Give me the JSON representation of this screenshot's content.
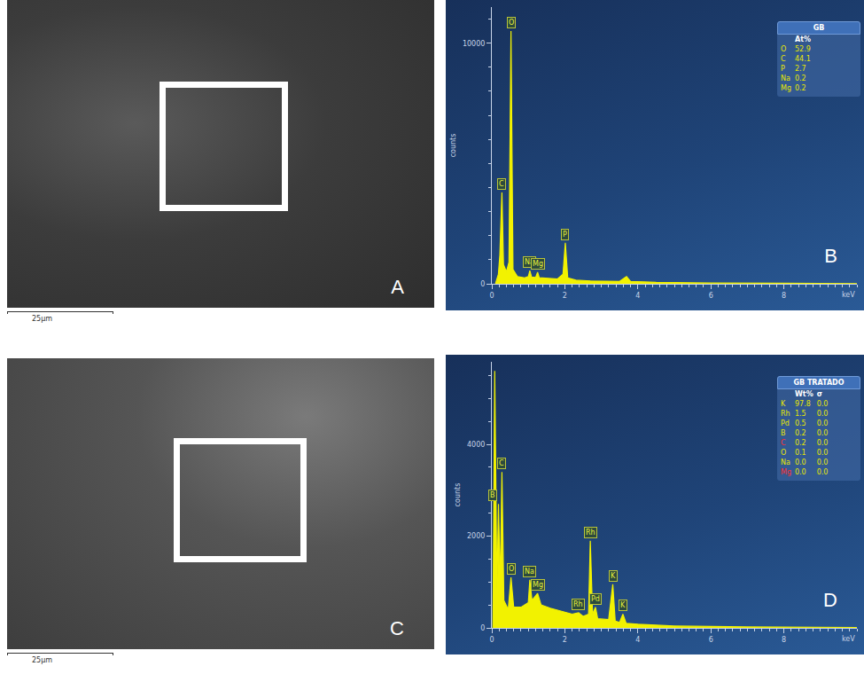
{
  "images": [
    {
      "label": "A",
      "scale_bar": "25µm"
    },
    {
      "label": "C",
      "scale_bar": "25µm"
    }
  ],
  "chart_data": [
    {
      "type": "line",
      "label": "B",
      "y_label": "counts",
      "x_label": "keV",
      "xlim": [
        0,
        10
      ],
      "xticks": [
        0,
        2,
        4,
        6,
        8
      ],
      "ylim": [
        0,
        11500
      ],
      "yticks": [
        0,
        10000
      ],
      "color": "#f2f200",
      "x": [
        0.1,
        0.18,
        0.22,
        0.277,
        0.32,
        0.4,
        0.47,
        0.525,
        0.58,
        0.7,
        0.9,
        1.0,
        1.041,
        1.09,
        1.2,
        1.254,
        1.3,
        1.5,
        1.8,
        1.95,
        2.013,
        2.08,
        2.3,
        2.7,
        3.5,
        3.69,
        3.8,
        4.5,
        6,
        8,
        10
      ],
      "values": [
        0,
        400,
        1200,
        3800,
        800,
        500,
        900,
        10500,
        600,
        300,
        250,
        300,
        550,
        280,
        260,
        480,
        250,
        220,
        200,
        400,
        1700,
        250,
        150,
        120,
        100,
        300,
        100,
        60,
        30,
        20,
        10
      ],
      "peak_labels": [
        {
          "text": "C",
          "x": 0.277
        },
        {
          "text": "O",
          "x": 0.525
        },
        {
          "text": "Na",
          "x": 1.041
        },
        {
          "text": "Mg",
          "x": 1.254
        },
        {
          "text": "P",
          "x": 2.013
        }
      ],
      "table": {
        "title": "GB",
        "columns": [
          "",
          "At%"
        ],
        "rows": [
          {
            "cells": [
              "O",
              "52.9"
            ]
          },
          {
            "cells": [
              "C",
              "44.1"
            ]
          },
          {
            "cells": [
              "P",
              "2.7"
            ]
          },
          {
            "cells": [
              "Na",
              "0.2"
            ]
          },
          {
            "cells": [
              "Mg",
              "0.2"
            ]
          }
        ]
      }
    },
    {
      "type": "line",
      "label": "D",
      "y_label": "counts",
      "x_label": "keV",
      "xlim": [
        0,
        10
      ],
      "xticks": [
        0,
        2,
        4,
        6,
        8
      ],
      "ylim": [
        0,
        5800
      ],
      "yticks": [
        0,
        2000,
        4000
      ],
      "color": "#f2f200",
      "x": [
        0.03,
        0.08,
        0.14,
        0.183,
        0.23,
        0.277,
        0.33,
        0.45,
        0.525,
        0.6,
        0.8,
        1.0,
        1.041,
        1.1,
        1.254,
        1.35,
        1.6,
        2.0,
        2.2,
        2.377,
        2.5,
        2.65,
        2.697,
        2.76,
        2.839,
        2.9,
        3.2,
        3.313,
        3.38,
        3.5,
        3.59,
        3.68,
        4,
        5,
        7,
        10
      ],
      "values": [
        0,
        5600,
        800,
        2700,
        900,
        3400,
        600,
        400,
        1100,
        450,
        450,
        550,
        1050,
        600,
        750,
        500,
        430,
        350,
        300,
        330,
        250,
        300,
        1900,
        300,
        450,
        200,
        180,
        950,
        150,
        120,
        300,
        100,
        80,
        40,
        20,
        10
      ],
      "peak_labels": [
        {
          "text": "B",
          "x": 0.183
        },
        {
          "text": "C",
          "x": 0.277
        },
        {
          "text": "O",
          "x": 0.525
        },
        {
          "text": "Na",
          "x": 1.041
        },
        {
          "text": "Mg",
          "x": 1.254
        },
        {
          "text": "Rh",
          "x": 2.377
        },
        {
          "text": "Rh",
          "x": 2.697
        },
        {
          "text": "Pd",
          "x": 2.839
        },
        {
          "text": "K",
          "x": 3.313
        },
        {
          "text": "K",
          "x": 3.59
        }
      ],
      "table": {
        "title": "GB TRATADO",
        "columns": [
          "",
          "Wt%",
          "σ"
        ],
        "rows": [
          {
            "cells": [
              "K",
              "97.8",
              "0.0"
            ]
          },
          {
            "cells": [
              "Rh",
              "1.5",
              "0.0"
            ]
          },
          {
            "cells": [
              "Pd",
              "0.5",
              "0.0"
            ]
          },
          {
            "cells": [
              "B",
              "0.2",
              "0.0"
            ]
          },
          {
            "cells": [
              "C",
              "0.2",
              "0.0"
            ],
            "color": "#ff3030"
          },
          {
            "cells": [
              "O",
              "0.1",
              "0.0"
            ]
          },
          {
            "cells": [
              "Na",
              "0.0",
              "0.0"
            ]
          },
          {
            "cells": [
              "Mg",
              "0.0",
              "0.0"
            ],
            "color": "#ff3030"
          }
        ]
      }
    }
  ]
}
